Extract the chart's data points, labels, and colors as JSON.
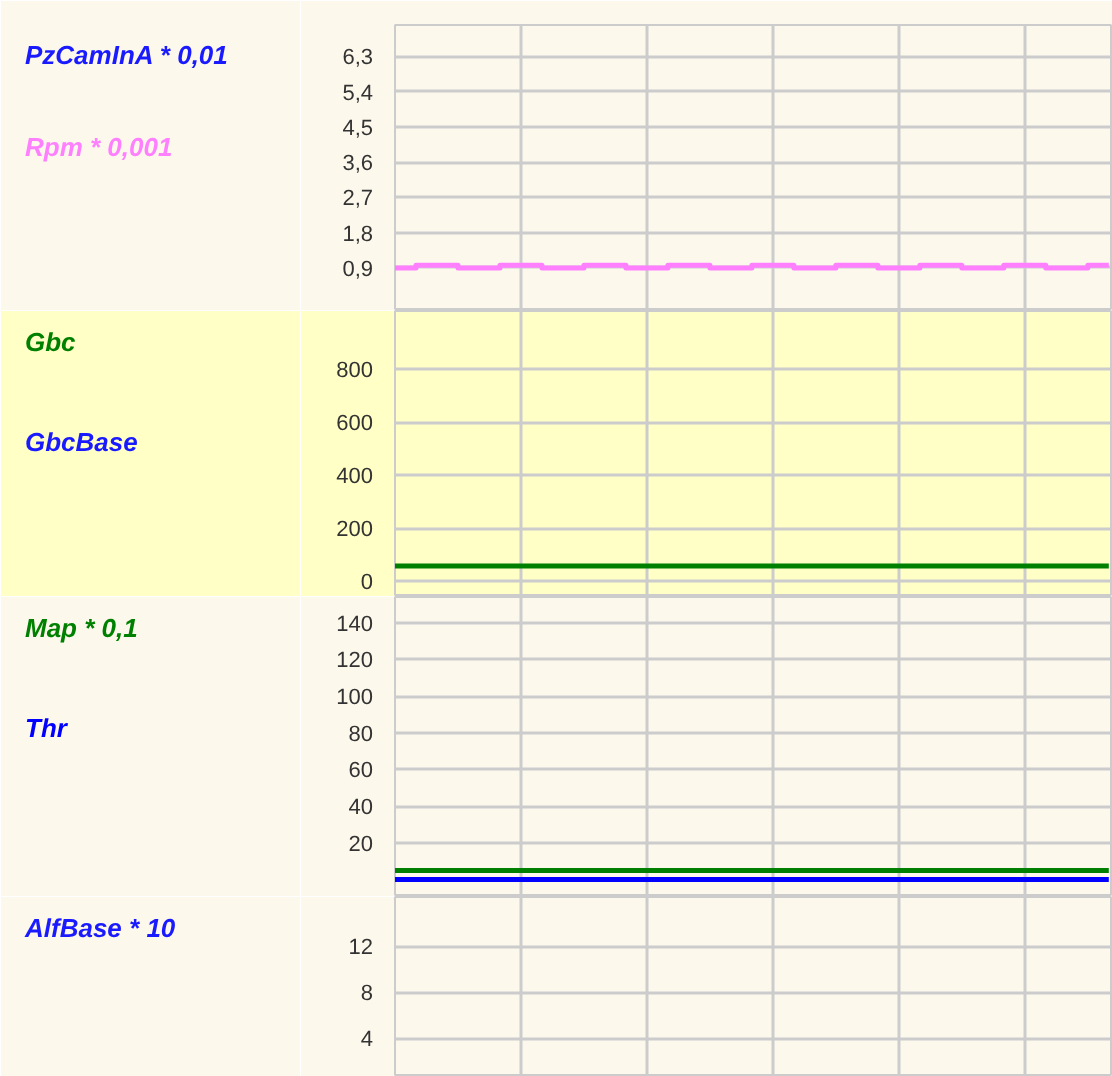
{
  "chart_data": [
    {
      "type": "step",
      "categories": [
        null,
        null,
        null,
        null,
        null,
        null,
        null,
        null,
        null,
        null,
        null,
        null,
        null,
        null,
        null,
        null,
        null,
        null,
        null,
        null,
        null,
        null,
        null,
        null,
        null,
        null,
        null,
        null,
        null,
        null,
        null,
        null,
        null,
        null,
        null
      ],
      "series": [
        {
          "name": "PzCamInA * 0,01",
          "color": "#1a1aff",
          "values": [
            null,
            null,
            null,
            null,
            null,
            null,
            null,
            null,
            null,
            null,
            null,
            null,
            null,
            null,
            null,
            null,
            null,
            null,
            null,
            null,
            null,
            null,
            null,
            null,
            null,
            null,
            null,
            null,
            null,
            null,
            null,
            null,
            null,
            null,
            null
          ]
        },
        {
          "name": "Rpm * 0,001",
          "color": "#ff80ff",
          "values": [
            0.9,
            0.97,
            0.97,
            0.9,
            0.9,
            0.97,
            0.97,
            0.9,
            0.9,
            0.97,
            0.97,
            0.9,
            0.9,
            0.97,
            0.97,
            0.9,
            0.9,
            0.97,
            0.97,
            0.9,
            0.9,
            0.97,
            0.97,
            0.9,
            0.9,
            0.97,
            0.97,
            0.9,
            0.9,
            0.97,
            0.97,
            0.9,
            0.9,
            0.97,
            0.97
          ]
        }
      ],
      "ylim": [
        -0.2,
        7.1
      ],
      "yticks": [
        {
          "value": 0.9,
          "label": "0,9"
        },
        {
          "value": 1.8,
          "label": "1,8"
        },
        {
          "value": 2.7,
          "label": "2,7"
        },
        {
          "value": 3.6,
          "label": "3,6"
        },
        {
          "value": 4.5,
          "label": "4,5"
        },
        {
          "value": 5.4,
          "label": "5,4"
        },
        {
          "value": 6.3,
          "label": "6,3"
        }
      ],
      "grid": true,
      "tick_labels": "y"
    },
    {
      "type": "line",
      "categories": [
        null,
        null,
        null,
        null,
        null,
        null,
        null,
        null,
        null,
        null,
        null,
        null,
        null,
        null,
        null,
        null,
        null,
        null,
        null,
        null,
        null,
        null,
        null,
        null,
        null,
        null,
        null,
        null,
        null,
        null,
        null,
        null,
        null,
        null,
        null
      ],
      "series": [
        {
          "name": "Gbc",
          "color": "#008000",
          "values": [
            57,
            57,
            57,
            57,
            57,
            57,
            57,
            57,
            57,
            57,
            57,
            57,
            57,
            57,
            57,
            57,
            57,
            57,
            57,
            57,
            57,
            57,
            57,
            57,
            57,
            57,
            57,
            57,
            57,
            57,
            57,
            57,
            57,
            57,
            57
          ]
        },
        {
          "name": "GbcBase",
          "color": "#1a1aff",
          "values": [
            null,
            null,
            null,
            null,
            null,
            null,
            null,
            null,
            null,
            null,
            null,
            null,
            null,
            null,
            null,
            null,
            null,
            null,
            null,
            null,
            null,
            null,
            null,
            null,
            null,
            null,
            null,
            null,
            null,
            null,
            null,
            null,
            null,
            null,
            null
          ]
        }
      ],
      "ylim": [
        -60,
        1020
      ],
      "yticks": [
        0,
        200,
        400,
        600,
        800
      ],
      "grid": true,
      "tick_labels": "y"
    },
    {
      "type": "line",
      "categories": [
        null,
        null,
        null,
        null,
        null,
        null,
        null,
        null,
        null,
        null,
        null,
        null,
        null,
        null,
        null,
        null,
        null,
        null,
        null,
        null,
        null,
        null,
        null,
        null,
        null,
        null,
        null,
        null,
        null,
        null,
        null,
        null,
        null,
        null,
        null
      ],
      "series": [
        {
          "name": "Map * 0,1",
          "color": "#008000",
          "values": [
            5,
            5,
            5,
            5,
            5,
            5,
            5,
            5,
            5,
            5,
            5,
            5,
            5,
            5,
            5,
            5,
            5,
            5,
            5,
            5,
            5,
            5,
            5,
            5,
            5,
            5,
            5,
            5,
            5,
            5,
            5,
            5,
            5,
            5,
            5
          ]
        },
        {
          "name": "Thr",
          "color": "#0000ff",
          "values": [
            0,
            0,
            0,
            0,
            0,
            0,
            0,
            0,
            0,
            0,
            0,
            0,
            0,
            0,
            0,
            0,
            0,
            0,
            0,
            0,
            0,
            0,
            0,
            0,
            0,
            0,
            0,
            0,
            0,
            0,
            0,
            0,
            0,
            0,
            0
          ]
        }
      ],
      "ylim": [
        -9.5,
        154
      ],
      "yticks": [
        20,
        40,
        60,
        80,
        100,
        120,
        140
      ],
      "grid": true,
      "tick_labels": "y"
    },
    {
      "type": "line",
      "categories": [
        null,
        null,
        null,
        null,
        null,
        null,
        null,
        null,
        null,
        null,
        null,
        null,
        null,
        null,
        null,
        null,
        null,
        null,
        null,
        null,
        null,
        null,
        null,
        null,
        null,
        null,
        null,
        null,
        null,
        null,
        null,
        null,
        null,
        null,
        null
      ],
      "series": [
        {
          "name": "AlfBase * 10",
          "color": "#1a1aff",
          "values": [
            null,
            null,
            null,
            null,
            null,
            null,
            null,
            null,
            null,
            null,
            null,
            null,
            null,
            null,
            null,
            null,
            null,
            null,
            null,
            null,
            null,
            null,
            null,
            null,
            null,
            null,
            null,
            null,
            null,
            null,
            null,
            null,
            null,
            null,
            null
          ]
        }
      ],
      "ylim": [
        0.6,
        16.3
      ],
      "yticks": [
        4,
        8,
        12
      ],
      "grid": true,
      "tick_labels": "y"
    }
  ]
}
